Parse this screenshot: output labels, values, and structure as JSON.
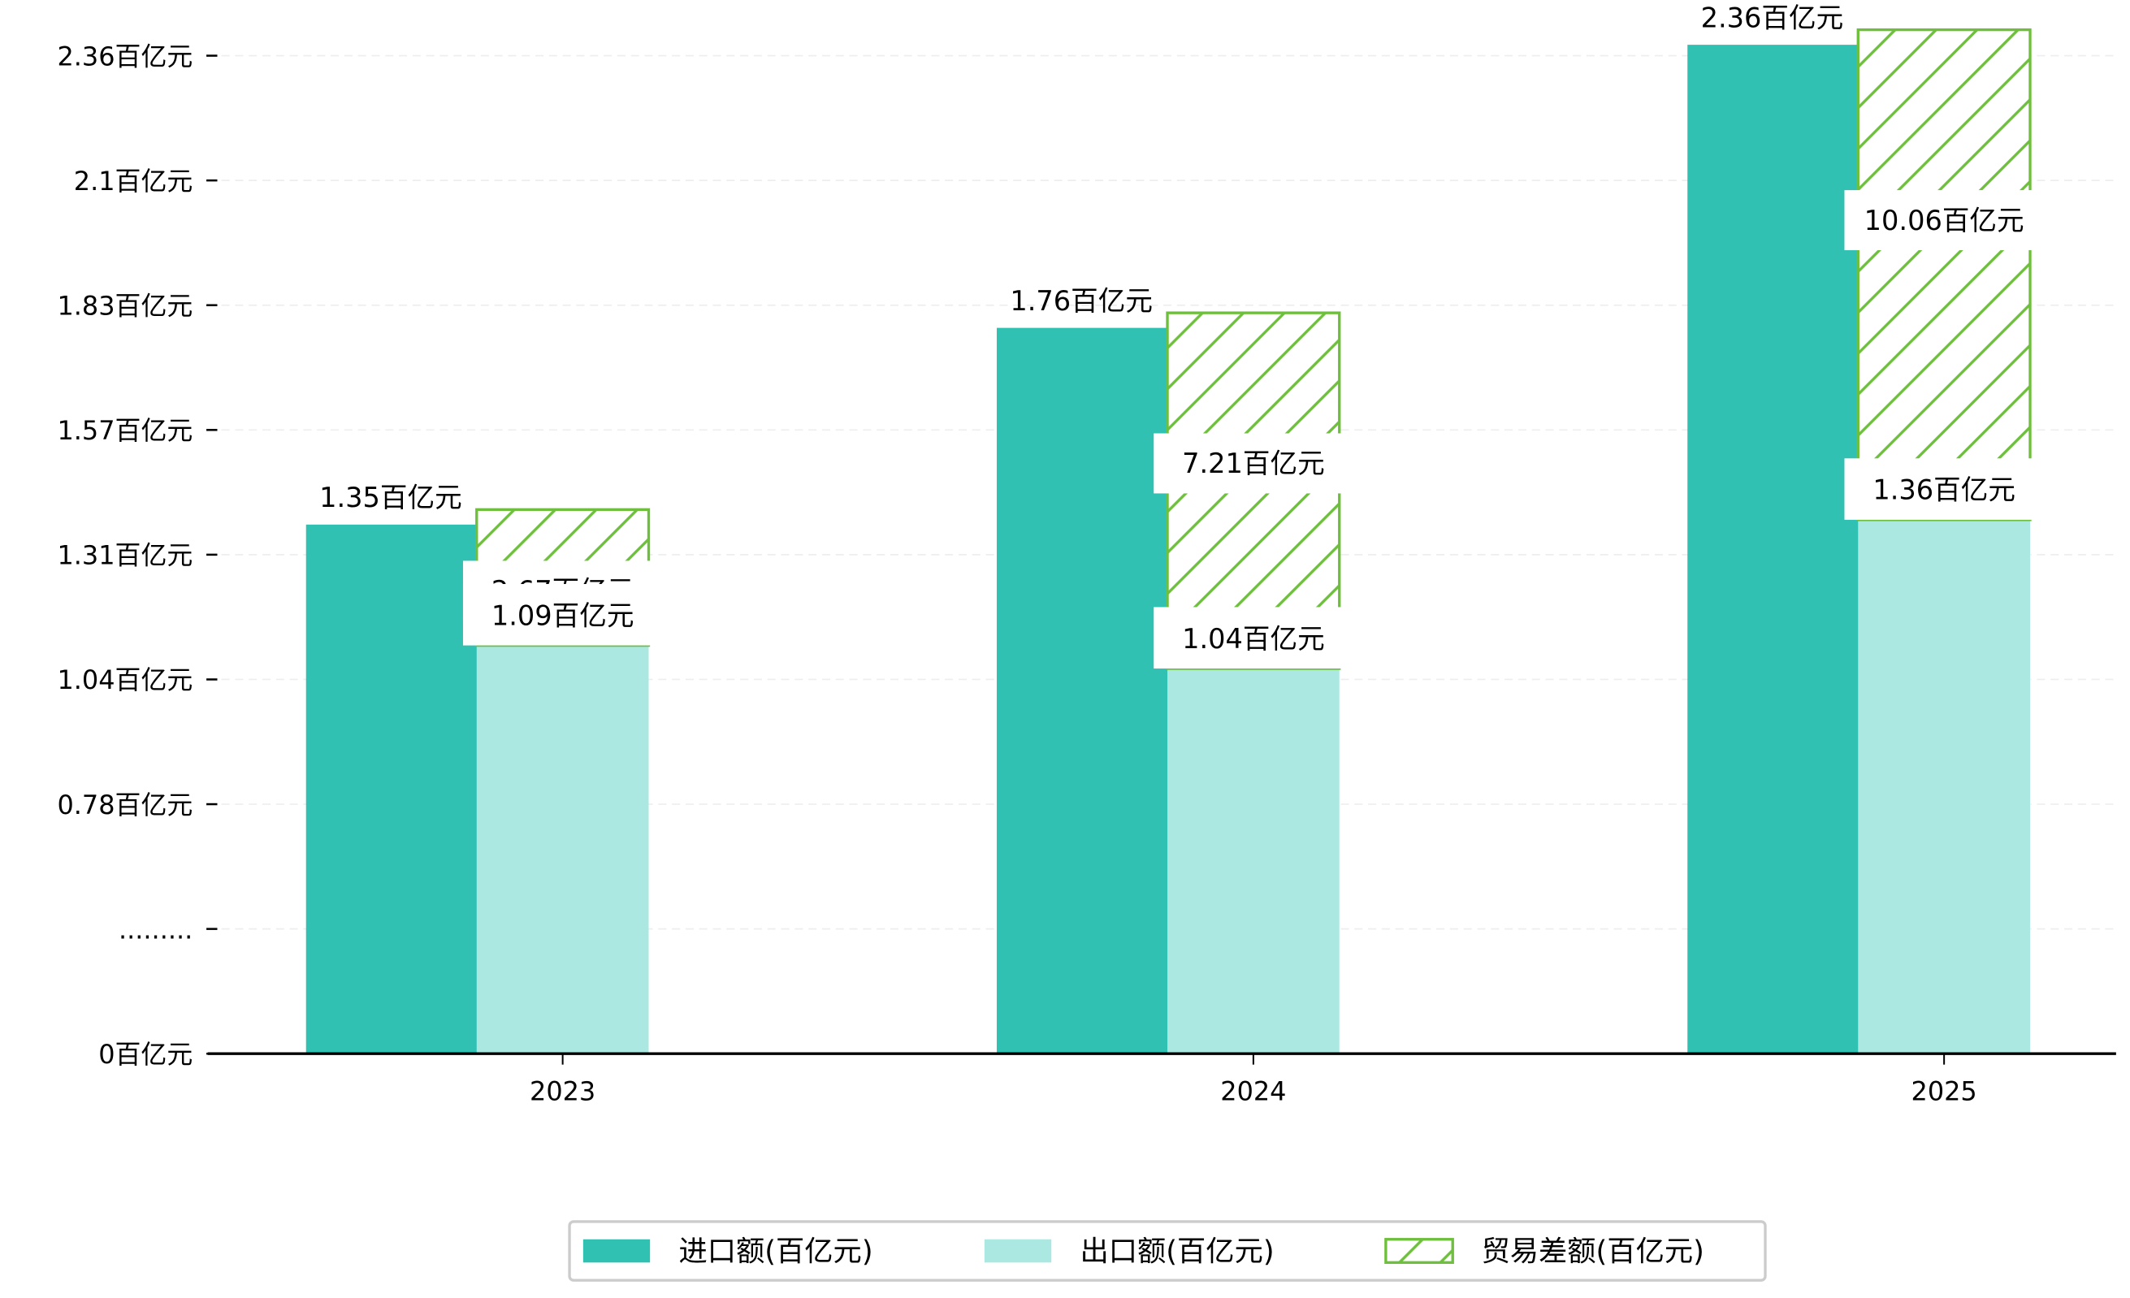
{
  "colors": {
    "import": "#31c1b3",
    "export": "#abe8e2",
    "trade_diff": "#6dbf3c",
    "grid": "#eeeeee",
    "axis": "#000000",
    "legend_border": "#cccccc"
  },
  "chart_data": {
    "type": "bar",
    "title": "",
    "xlabel": "",
    "ylabel": "",
    "categories": [
      "2023",
      "2024",
      "2025"
    ],
    "ylim": [
      0,
      2.36
    ],
    "grid": true,
    "legend_position": "bottom-center",
    "y_ticks": [
      {
        "label": "0百亿元",
        "value": 0
      },
      {
        "label": ".........",
        "value": null
      },
      {
        "label": "0.78百亿元",
        "value": 0.78
      },
      {
        "label": "1.04百亿元",
        "value": 1.04
      },
      {
        "label": "1.31百亿元",
        "value": 1.31
      },
      {
        "label": "1.57百亿元",
        "value": 1.57
      },
      {
        "label": "1.83百亿元",
        "value": 1.83
      },
      {
        "label": "2.1百亿元",
        "value": 2.1
      },
      {
        "label": "2.36百亿元",
        "value": 2.36
      }
    ],
    "series": [
      {
        "name": "进口额(百亿元)",
        "key": "import",
        "values": [
          1.35,
          1.76,
          2.36
        ],
        "labels": [
          "1.35百亿元",
          "1.76百亿元",
          "2.36百亿元"
        ]
      },
      {
        "name": "出口额(百亿元)",
        "key": "export",
        "values": [
          1.09,
          1.04,
          1.36
        ],
        "labels": [
          "1.09百亿元",
          "1.04百亿元",
          "1.36百亿元"
        ]
      },
      {
        "name": "贸易差额(百亿元)",
        "key": "trade_diff",
        "values": [
          2.67,
          7.21,
          10.06
        ],
        "labels": [
          "2.67百亿元",
          "7.21百亿元",
          "10.06百亿元"
        ],
        "style": "hatched"
      }
    ]
  }
}
